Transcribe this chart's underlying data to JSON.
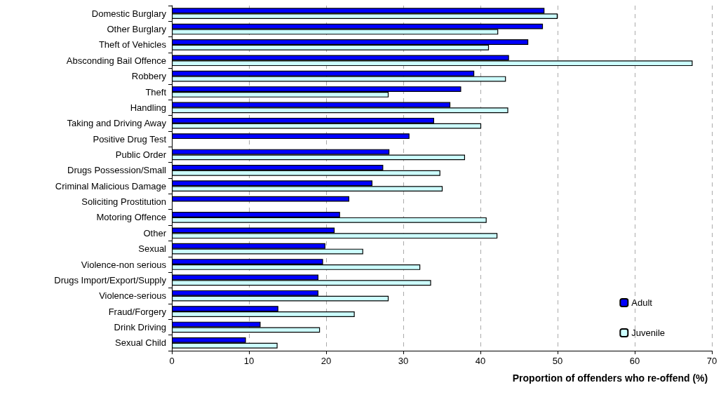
{
  "chart_data": {
    "type": "bar",
    "orientation": "horizontal",
    "xlabel": "Proportion of offenders who re-offend (%)",
    "categories": [
      "Domestic Burglary",
      "Other Burglary",
      "Theft of Vehicles",
      "Absconding Bail Offence",
      "Robbery",
      "Theft",
      "Handling",
      "Taking and Driving Away",
      "Positive Drug Test",
      "Public Order",
      "Drugs Possession/Small",
      "Criminal Malicious Damage",
      "Soliciting Prostitution",
      "Motoring Offence",
      "Other",
      "Sexual",
      "Violence-non serious",
      "Drugs Import/Export/Supply",
      "Violence-serious",
      "Fraud/Forgery",
      "Drink Driving",
      "Sexual Child"
    ],
    "series": [
      {
        "name": "Adult",
        "color": "#0000ff",
        "values": [
          48.3,
          48.1,
          46.2,
          43.7,
          39.2,
          37.5,
          36.1,
          34.0,
          30.8,
          28.2,
          27.4,
          26.0,
          23.0,
          21.8,
          21.1,
          19.9,
          19.6,
          19.0,
          19.0,
          13.8,
          11.5,
          9.6
        ]
      },
      {
        "name": "Juvenile",
        "color": "#ccffff",
        "values": [
          50.0,
          42.3,
          41.1,
          67.5,
          43.3,
          28.1,
          43.6,
          40.1,
          null,
          38.0,
          34.8,
          35.1,
          null,
          40.8,
          42.2,
          24.8,
          32.2,
          33.6,
          28.1,
          23.7,
          19.2,
          13.7
        ]
      }
    ],
    "xlim": [
      0,
      70
    ],
    "xticks": [
      0,
      10,
      20,
      30,
      40,
      50,
      60,
      70
    ],
    "grid": "x",
    "legend": "bottom right"
  }
}
